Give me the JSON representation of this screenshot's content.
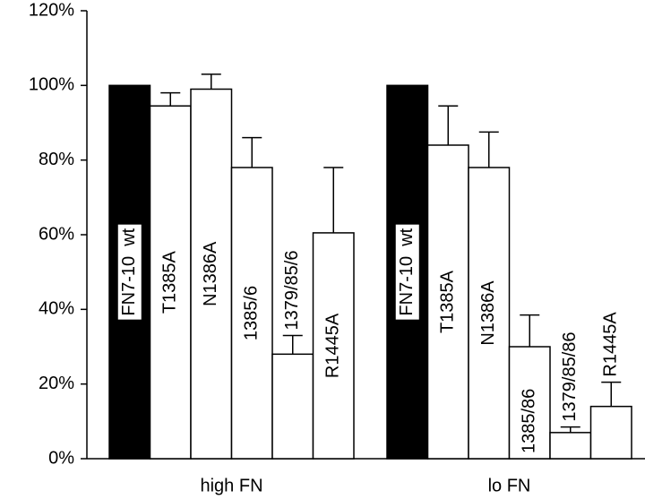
{
  "chart_data": {
    "type": "bar",
    "ylim": [
      0,
      120
    ],
    "yticks": [
      {
        "value": 0,
        "label": "0%"
      },
      {
        "value": 20,
        "label": "20%"
      },
      {
        "value": 40,
        "label": "40%"
      },
      {
        "value": 60,
        "label": "60%"
      },
      {
        "value": 80,
        "label": "80%"
      },
      {
        "value": 100,
        "label": "100%"
      },
      {
        "value": 120,
        "label": "120%"
      }
    ],
    "groups": [
      {
        "name": "high FN",
        "bars": [
          {
            "label": "FN7-10  wt",
            "value": 100,
            "error": null,
            "color": "#000000"
          },
          {
            "label": "T1385A",
            "value": 94.5,
            "error": 3.5,
            "color": "#ffffff"
          },
          {
            "label": "N1386A",
            "value": 99,
            "error": 4,
            "color": "#ffffff"
          },
          {
            "label": "1385/6",
            "value": 78,
            "error": 8,
            "color": "#ffffff"
          },
          {
            "label": "1379/85/6",
            "value": 28,
            "error": 5,
            "color": "#ffffff"
          },
          {
            "label": "R1445A",
            "value": 60.5,
            "error": 17.5,
            "color": "#ffffff"
          }
        ]
      },
      {
        "name": "lo FN",
        "bars": [
          {
            "label": "FN7-10  wt",
            "value": 100,
            "error": null,
            "color": "#000000"
          },
          {
            "label": "T1385A",
            "value": 84,
            "error": 10.5,
            "color": "#ffffff"
          },
          {
            "label": "N1386A",
            "value": 78,
            "error": 9.5,
            "color": "#ffffff"
          },
          {
            "label": "1385/86",
            "value": 30,
            "error": 8.5,
            "color": "#ffffff"
          },
          {
            "label": "1379/85/86",
            "value": 7,
            "error": 1.5,
            "color": "#ffffff"
          },
          {
            "label": "R1445A",
            "value": 14,
            "error": 6.5,
            "color": "#ffffff"
          }
        ]
      }
    ]
  }
}
